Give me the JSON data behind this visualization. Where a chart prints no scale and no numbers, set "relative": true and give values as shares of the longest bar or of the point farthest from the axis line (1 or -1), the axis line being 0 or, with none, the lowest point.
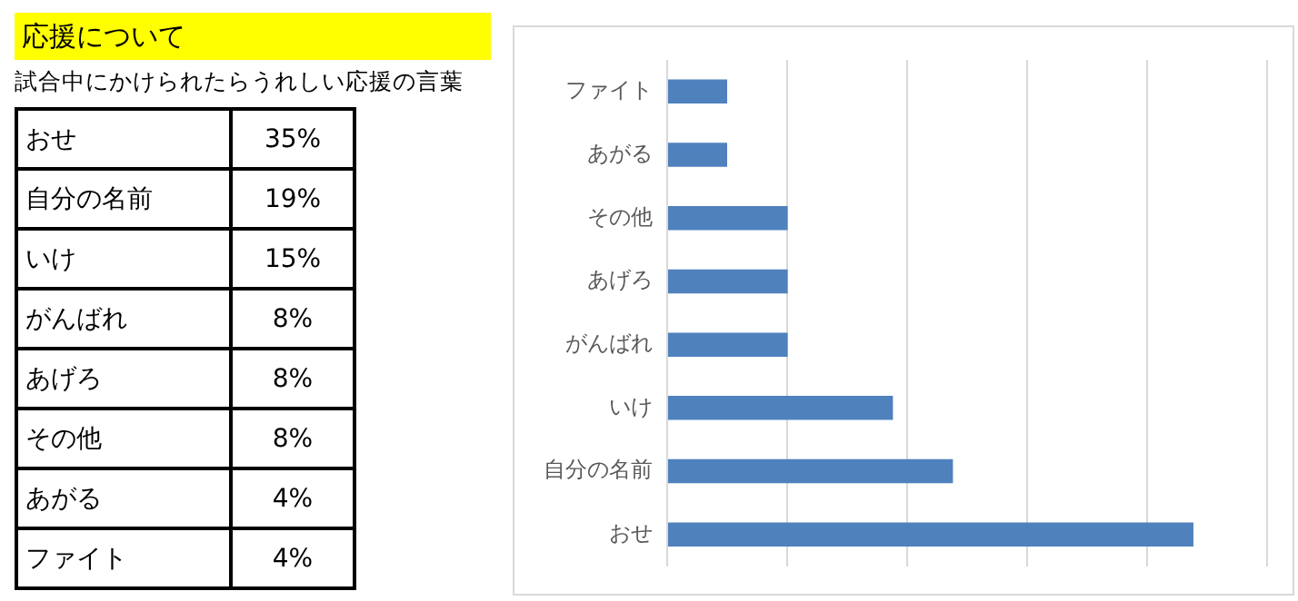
{
  "chart_data": [
    {
      "type": "other",
      "title": "応援について",
      "subtitle": "試合中にかけられたらうれしい応援の言葉",
      "categories": [
        "おせ",
        "自分の名前",
        "いけ",
        "がんばれ",
        "あげろ",
        "その他",
        "あがる",
        "ファイト"
      ],
      "value_labels": [
        "35%",
        "19%",
        "15%",
        "8%",
        "8%",
        "8%",
        "4%",
        "4%"
      ]
    },
    {
      "type": "bar",
      "orientation": "horizontal",
      "relative": true,
      "categories": [
        "ファイト",
        "あがる",
        "その他",
        "あげろ",
        "がんばれ",
        "いけ",
        "自分の名前",
        "おせ"
      ],
      "values": [
        0.114,
        0.114,
        0.229,
        0.229,
        0.229,
        0.429,
        0.543,
        1
      ],
      "color": "#4f81bd",
      "grid": "x",
      "tick_labels": "y",
      "legend": false
    }
  ]
}
